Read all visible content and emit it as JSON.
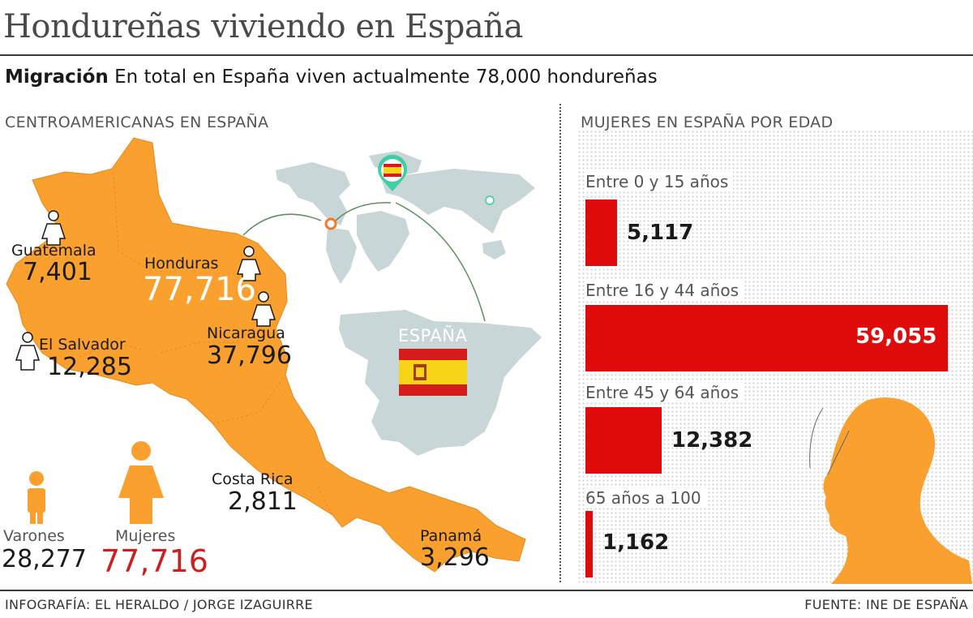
{
  "header": {
    "title": "Hondureñas viviendo en España",
    "subtitle_bold": "Migración",
    "subtitle_text": "En total en España viven actualmente 78,000 hondureñas"
  },
  "map_section": {
    "label": "CENTROAMERICANAS EN ESPAÑA",
    "countries": [
      {
        "name": "Guatemala",
        "value": "7,401"
      },
      {
        "name": "Honduras",
        "value": "77,716"
      },
      {
        "name": "El Salvador",
        "value": "12,285"
      },
      {
        "name": "Nicaragua",
        "value": "37,796"
      },
      {
        "name": "Costa Rica",
        "value": "2,811"
      },
      {
        "name": "Panamá",
        "value": "3,296"
      }
    ],
    "spain_label": "ESPAÑA",
    "gender": {
      "men_label": "Varones",
      "men_value": "28,277",
      "women_label": "Mujeres",
      "women_value": "77,716"
    }
  },
  "age_section": {
    "label": "MUJERES EN ESPAÑA POR EDAD",
    "groups": [
      {
        "label": "Entre 0 y 15 años",
        "value": "5,117"
      },
      {
        "label": "Entre 16 y 44 años",
        "value": "59,055"
      },
      {
        "label": "Entre 45 y 64 años",
        "value": "12,382"
      },
      {
        "label": "65 años a 100",
        "value": "1,162"
      }
    ]
  },
  "chart_data": {
    "type": "bar",
    "title": "MUJERES EN ESPAÑA POR EDAD",
    "categories": [
      "Entre 0 y 15 años",
      "Entre 16 y 44 años",
      "Entre 45 y 64 años",
      "65 años a 100"
    ],
    "values": [
      5117,
      59055,
      12382,
      1162
    ],
    "orientation": "horizontal",
    "xlim": [
      0,
      59055
    ]
  },
  "footer": {
    "credit": "INFOGRAFÍA: EL HERALDO / JORGE IZAGUIRRE",
    "source": "FUENTE: INE DE ESPAÑA"
  },
  "colors": {
    "map_fill": "#f9a02e",
    "bar": "#e00b0b",
    "world_map": "#c8d6d8",
    "accent_red": "#cc1f1f"
  },
  "icons": [
    "woman-icon",
    "man-icon",
    "location-pin-icon",
    "spain-flag-icon",
    "woman-head-icon"
  ]
}
